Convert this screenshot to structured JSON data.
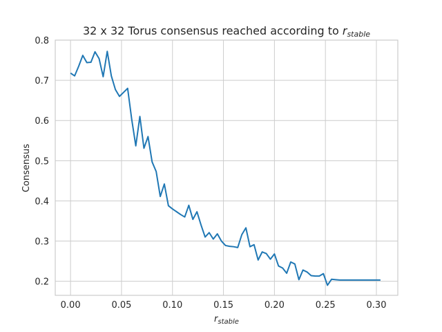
{
  "chart_data": {
    "type": "line",
    "title": "32 x 32 Torus consensus reached according to ",
    "title_math": {
      "base": "r",
      "sub": "stable"
    },
    "xlabel_math": {
      "base": "r",
      "sub": "stable"
    },
    "ylabel": "Consensus",
    "xlim": [
      -0.015,
      0.321
    ],
    "ylim": [
      0.165,
      0.8
    ],
    "xticks": [
      0.0,
      0.05,
      0.1,
      0.15,
      0.2,
      0.25,
      0.3
    ],
    "xtick_labels": [
      "0.00",
      "0.05",
      "0.10",
      "0.15",
      "0.20",
      "0.25",
      "0.30"
    ],
    "yticks": [
      0.2,
      0.3,
      0.4,
      0.5,
      0.6,
      0.7,
      0.8
    ],
    "ytick_labels": [
      "0.2",
      "0.3",
      "0.4",
      "0.5",
      "0.6",
      "0.7",
      "0.8"
    ],
    "grid": true,
    "color": "#1f77b4",
    "series": [
      {
        "x": [
          0.0,
          0.004,
          0.008,
          0.012,
          0.016,
          0.02,
          0.024,
          0.028,
          0.032,
          0.036,
          0.04,
          0.044,
          0.048,
          0.052,
          0.056,
          0.06,
          0.064,
          0.068,
          0.072,
          0.076,
          0.08,
          0.084,
          0.088,
          0.092,
          0.096,
          0.1,
          0.104,
          0.108,
          0.112,
          0.116,
          0.12,
          0.124,
          0.128,
          0.132,
          0.136,
          0.14,
          0.144,
          0.148,
          0.152,
          0.156,
          0.16,
          0.164,
          0.168,
          0.172,
          0.176,
          0.18,
          0.184,
          0.188,
          0.192,
          0.196,
          0.2,
          0.204,
          0.208,
          0.212,
          0.216,
          0.22,
          0.224,
          0.228,
          0.232,
          0.236,
          0.24,
          0.244,
          0.248,
          0.252,
          0.256,
          0.26,
          0.264,
          0.268,
          0.272,
          0.276,
          0.28,
          0.284,
          0.288,
          0.292,
          0.296,
          0.3,
          0.304
        ],
        "y": [
          0.718,
          0.711,
          0.735,
          0.762,
          0.744,
          0.745,
          0.771,
          0.754,
          0.709,
          0.772,
          0.711,
          0.677,
          0.66,
          0.67,
          0.68,
          0.603,
          0.537,
          0.61,
          0.531,
          0.56,
          0.497,
          0.473,
          0.411,
          0.442,
          0.388,
          0.38,
          0.373,
          0.366,
          0.36,
          0.389,
          0.354,
          0.373,
          0.34,
          0.31,
          0.321,
          0.305,
          0.318,
          0.3,
          0.289,
          0.287,
          0.286,
          0.284,
          0.316,
          0.333,
          0.286,
          0.291,
          0.253,
          0.273,
          0.269,
          0.255,
          0.268,
          0.238,
          0.233,
          0.22,
          0.248,
          0.243,
          0.204,
          0.228,
          0.223,
          0.214,
          0.213,
          0.213,
          0.219,
          0.19,
          0.205,
          0.204,
          0.203,
          0.203,
          0.203,
          0.203,
          0.203,
          0.203,
          0.203,
          0.203,
          0.203,
          0.203,
          0.203
        ]
      }
    ]
  }
}
